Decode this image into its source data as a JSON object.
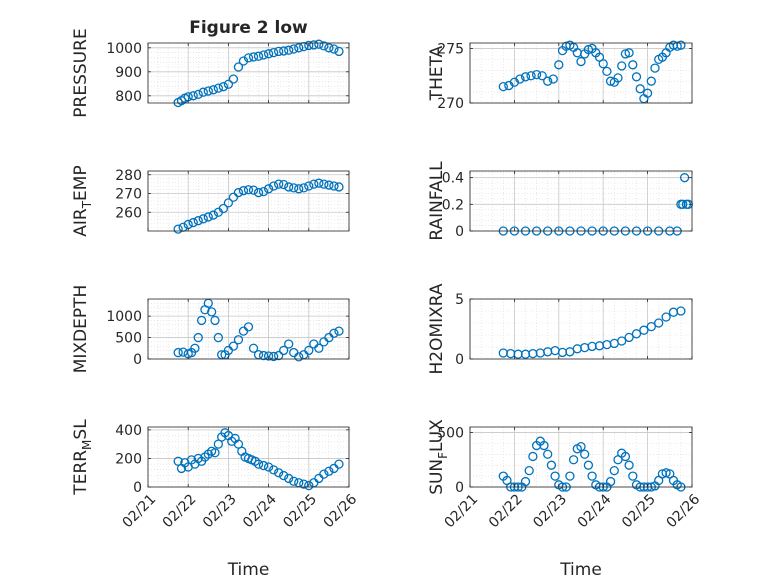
{
  "figure": {
    "background": "#ffffff",
    "marker_color": "#0072BD",
    "marker": "open-circle",
    "grid": "dotted-minor-and-major"
  },
  "chart_data": [
    {
      "type": "scatter",
      "title": "Figure 2 low",
      "ylabel": "PRESSURE",
      "xlabel": "",
      "xlim": [
        "02/21",
        "02/26"
      ],
      "ylim": [
        770,
        1020
      ],
      "yticks": [
        800,
        900,
        1000
      ],
      "xticks": [
        "02/21",
        "02/22",
        "02/23",
        "02/24",
        "02/25",
        "02/26"
      ],
      "show_xticklabels": false,
      "x": [
        "02/21 18:00",
        "02/21 20:00",
        "02/21 22:00",
        "02/22 00:00",
        "02/22 03:00",
        "02/22 06:00",
        "02/22 09:00",
        "02/22 12:00",
        "02/22 15:00",
        "02/22 18:00",
        "02/22 21:00",
        "02/23 00:00",
        "02/23 03:00",
        "02/23 06:00",
        "02/23 09:00",
        "02/23 12:00",
        "02/23 15:00",
        "02/23 18:00",
        "02/23 21:00",
        "02/24 00:00",
        "02/24 03:00",
        "02/24 06:00",
        "02/24 09:00",
        "02/24 12:00",
        "02/24 15:00",
        "02/24 18:00",
        "02/24 21:00",
        "02/25 00:00",
        "02/25 03:00",
        "02/25 06:00",
        "02/25 09:00",
        "02/25 12:00",
        "02/25 15:00",
        "02/25 18:00"
      ],
      "y": [
        772,
        780,
        790,
        796,
        800,
        806,
        815,
        820,
        825,
        832,
        838,
        848,
        870,
        920,
        945,
        958,
        962,
        965,
        970,
        975,
        980,
        985,
        987,
        990,
        995,
        1000,
        1005,
        1010,
        1012,
        1015,
        1008,
        1000,
        995,
        985
      ]
    },
    {
      "type": "scatter",
      "title": "",
      "ylabel": "THETA",
      "xlabel": "",
      "xlim": [
        "02/21",
        "02/26"
      ],
      "ylim": [
        270,
        275.5
      ],
      "yticks": [
        270,
        275
      ],
      "xticks": [
        "02/21",
        "02/22",
        "02/23",
        "02/24",
        "02/25",
        "02/26"
      ],
      "show_xticklabels": false,
      "x": [
        "02/21 18:00",
        "02/21 21:00",
        "02/22 00:00",
        "02/22 03:00",
        "02/22 06:00",
        "02/22 09:00",
        "02/22 12:00",
        "02/22 15:00",
        "02/22 18:00",
        "02/22 21:00",
        "02/23 00:00",
        "02/23 02:00",
        "02/23 04:00",
        "02/23 06:00",
        "02/23 08:00",
        "02/23 10:00",
        "02/23 12:00",
        "02/23 14:00",
        "02/23 16:00",
        "02/23 18:00",
        "02/23 20:00",
        "02/23 22:00",
        "02/24 00:00",
        "02/24 02:00",
        "02/24 04:00",
        "02/24 06:00",
        "02/24 08:00",
        "02/24 10:00",
        "02/24 12:00",
        "02/24 14:00",
        "02/24 16:00",
        "02/24 18:00",
        "02/24 20:00",
        "02/24 22:00",
        "02/25 00:00",
        "02/25 02:00",
        "02/25 04:00",
        "02/25 06:00",
        "02/25 08:00",
        "02/25 10:00",
        "02/25 12:00",
        "02/25 14:00",
        "02/25 16:00",
        "02/25 18:00"
      ],
      "y": [
        271.5,
        271.6,
        271.9,
        272.2,
        272.4,
        272.5,
        272.6,
        272.5,
        272.0,
        272.2,
        273.5,
        274.8,
        275.2,
        275.3,
        275.1,
        274.6,
        273.8,
        274.5,
        274.9,
        275.0,
        274.6,
        274.2,
        273.6,
        272.9,
        272.0,
        271.9,
        272.3,
        273.4,
        274.5,
        274.6,
        273.5,
        272.4,
        271.3,
        270.4,
        270.9,
        272.0,
        273.2,
        274.0,
        274.2,
        274.6,
        275.1,
        275.3,
        275.2,
        275.3
      ]
    },
    {
      "type": "scatter",
      "title": "",
      "ylabel": "AIR_TEMP",
      "ylabel_parts": [
        "AIR",
        "T",
        "EMP"
      ],
      "xlabel": "",
      "xlim": [
        "02/21",
        "02/26"
      ],
      "ylim": [
        250,
        282
      ],
      "yticks": [
        260,
        270,
        280
      ],
      "xticks": [
        "02/21",
        "02/22",
        "02/23",
        "02/24",
        "02/25",
        "02/26"
      ],
      "show_xticklabels": false,
      "x": [
        "02/21 18:00",
        "02/21 21:00",
        "02/22 00:00",
        "02/22 03:00",
        "02/22 06:00",
        "02/22 09:00",
        "02/22 12:00",
        "02/22 15:00",
        "02/22 18:00",
        "02/22 21:00",
        "02/23 00:00",
        "02/23 03:00",
        "02/23 06:00",
        "02/23 09:00",
        "02/23 12:00",
        "02/23 15:00",
        "02/23 18:00",
        "02/23 21:00",
        "02/24 00:00",
        "02/24 03:00",
        "02/24 06:00",
        "02/24 09:00",
        "02/24 12:00",
        "02/24 15:00",
        "02/24 18:00",
        "02/24 21:00",
        "02/25 00:00",
        "02/25 03:00",
        "02/25 06:00",
        "02/25 09:00",
        "02/25 12:00",
        "02/25 15:00",
        "02/25 18:00"
      ],
      "y": [
        251,
        252,
        253.5,
        254.5,
        255.5,
        256.5,
        257.5,
        258.5,
        260,
        262,
        265,
        268,
        270.5,
        271.5,
        272,
        271.8,
        270.5,
        271,
        272.5,
        274,
        275,
        274.8,
        273.5,
        273,
        272.5,
        273,
        274,
        275,
        275.5,
        275,
        274.5,
        274,
        273.5
      ]
    },
    {
      "type": "scatter",
      "title": "",
      "ylabel": "RAINFALL",
      "xlabel": "",
      "xlim": [
        "02/21",
        "02/26"
      ],
      "ylim": [
        0,
        0.45
      ],
      "yticks": [
        0,
        0.2,
        0.4
      ],
      "ytick_labels": [
        "0",
        "0.2",
        "0.4"
      ],
      "xticks": [
        "02/21",
        "02/22",
        "02/23",
        "02/24",
        "02/25",
        "02/26"
      ],
      "show_xticklabels": false,
      "x": [
        "02/21 18:00",
        "02/22 00:00",
        "02/22 06:00",
        "02/22 12:00",
        "02/22 18:00",
        "02/23 00:00",
        "02/23 06:00",
        "02/23 12:00",
        "02/23 18:00",
        "02/24 00:00",
        "02/24 06:00",
        "02/24 12:00",
        "02/24 18:00",
        "02/25 00:00",
        "02/25 06:00",
        "02/25 12:00",
        "02/25 16:00",
        "02/25 18:00",
        "02/25 19:00",
        "02/25 20:00",
        "02/25 21:00",
        "02/25 22:00"
      ],
      "y": [
        0,
        0,
        0,
        0,
        0,
        0,
        0,
        0,
        0,
        0,
        0,
        0,
        0,
        0,
        0,
        0,
        0,
        0.2,
        0.2,
        0.4,
        0.2,
        0.2
      ]
    },
    {
      "type": "scatter",
      "title": "",
      "ylabel": "MIXDEPTH",
      "xlabel": "",
      "xlim": [
        "02/21",
        "02/26"
      ],
      "ylim": [
        0,
        1400
      ],
      "yticks": [
        0,
        500,
        1000
      ],
      "xticks": [
        "02/21",
        "02/22",
        "02/23",
        "02/24",
        "02/25",
        "02/26"
      ],
      "show_xticklabels": false,
      "x": [
        "02/21 18:00",
        "02/21 21:00",
        "02/22 00:00",
        "02/22 02:00",
        "02/22 04:00",
        "02/22 06:00",
        "02/22 08:00",
        "02/22 10:00",
        "02/22 12:00",
        "02/22 14:00",
        "02/22 16:00",
        "02/22 18:00",
        "02/22 20:00",
        "02/22 22:00",
        "02/23 00:00",
        "02/23 03:00",
        "02/23 06:00",
        "02/23 09:00",
        "02/23 12:00",
        "02/23 15:00",
        "02/23 18:00",
        "02/23 21:00",
        "02/24 00:00",
        "02/24 03:00",
        "02/24 06:00",
        "02/24 09:00",
        "02/24 12:00",
        "02/24 15:00",
        "02/24 18:00",
        "02/24 21:00",
        "02/25 00:00",
        "02/25 03:00",
        "02/25 06:00",
        "02/25 09:00",
        "02/25 12:00",
        "02/25 15:00",
        "02/25 18:00"
      ],
      "y": [
        150,
        160,
        120,
        150,
        250,
        500,
        900,
        1150,
        1300,
        1100,
        900,
        500,
        100,
        100,
        200,
        300,
        450,
        650,
        750,
        250,
        100,
        80,
        70,
        60,
        80,
        200,
        350,
        150,
        50,
        100,
        200,
        350,
        250,
        400,
        500,
        600,
        650
      ]
    },
    {
      "type": "scatter",
      "title": "",
      "ylabel": "H2OMIXRA",
      "xlabel": "",
      "xlim": [
        "02/21",
        "02/26"
      ],
      "ylim": [
        0,
        5
      ],
      "yticks": [
        0,
        5
      ],
      "xticks": [
        "02/21",
        "02/22",
        "02/23",
        "02/24",
        "02/25",
        "02/26"
      ],
      "show_xticklabels": false,
      "x": [
        "02/21 18:00",
        "02/21 22:00",
        "02/22 02:00",
        "02/22 06:00",
        "02/22 10:00",
        "02/22 14:00",
        "02/22 18:00",
        "02/22 22:00",
        "02/23 02:00",
        "02/23 06:00",
        "02/23 10:00",
        "02/23 14:00",
        "02/23 18:00",
        "02/23 22:00",
        "02/24 02:00",
        "02/24 06:00",
        "02/24 10:00",
        "02/24 14:00",
        "02/24 18:00",
        "02/24 22:00",
        "02/25 02:00",
        "02/25 06:00",
        "02/25 10:00",
        "02/25 14:00",
        "02/25 18:00"
      ],
      "y": [
        0.5,
        0.45,
        0.4,
        0.4,
        0.45,
        0.5,
        0.6,
        0.7,
        0.55,
        0.6,
        0.85,
        0.95,
        1.05,
        1.1,
        1.2,
        1.3,
        1.5,
        1.8,
        2.1,
        2.4,
        2.7,
        3.0,
        3.5,
        3.9,
        4.0
      ]
    },
    {
      "type": "scatter",
      "title": "",
      "ylabel": "TERR_MSL",
      "ylabel_parts": [
        "TERR",
        "M",
        "SL"
      ],
      "xlabel": "Time",
      "xlim": [
        "02/21",
        "02/26"
      ],
      "ylim": [
        0,
        420
      ],
      "yticks": [
        0,
        200,
        400
      ],
      "xticks": [
        "02/21",
        "02/22",
        "02/23",
        "02/24",
        "02/25",
        "02/26"
      ],
      "show_xticklabels": true,
      "x": [
        "02/21 18:00",
        "02/21 20:00",
        "02/21 22:00",
        "02/22 00:00",
        "02/22 02:00",
        "02/22 04:00",
        "02/22 06:00",
        "02/22 08:00",
        "02/22 10:00",
        "02/22 12:00",
        "02/22 14:00",
        "02/22 16:00",
        "02/22 18:00",
        "02/22 20:00",
        "02/22 22:00",
        "02/23 00:00",
        "02/23 02:00",
        "02/23 04:00",
        "02/23 06:00",
        "02/23 08:00",
        "02/23 10:00",
        "02/23 12:00",
        "02/23 14:00",
        "02/23 16:00",
        "02/23 18:00",
        "02/23 21:00",
        "02/24 00:00",
        "02/24 03:00",
        "02/24 06:00",
        "02/24 09:00",
        "02/24 12:00",
        "02/24 15:00",
        "02/24 18:00",
        "02/24 21:00",
        "02/25 00:00",
        "02/25 03:00",
        "02/25 06:00",
        "02/25 09:00",
        "02/25 12:00",
        "02/25 15:00",
        "02/25 18:00"
      ],
      "y": [
        180,
        130,
        170,
        140,
        190,
        160,
        200,
        180,
        210,
        230,
        250,
        240,
        300,
        350,
        380,
        360,
        320,
        340,
        300,
        250,
        210,
        200,
        190,
        180,
        160,
        150,
        140,
        120,
        100,
        80,
        60,
        40,
        30,
        20,
        10,
        30,
        60,
        90,
        110,
        130,
        160
      ]
    },
    {
      "type": "scatter",
      "title": "",
      "ylabel": "SUN_FLUX",
      "ylabel_parts": [
        "SUN",
        "F",
        "LUX"
      ],
      "xlabel": "Time",
      "xlim": [
        "02/21",
        "02/26"
      ],
      "ylim": [
        0,
        550
      ],
      "yticks": [
        0,
        500
      ],
      "xticks": [
        "02/21",
        "02/22",
        "02/23",
        "02/24",
        "02/25",
        "02/26"
      ],
      "show_xticklabels": true,
      "x": [
        "02/21 18:00",
        "02/21 20:00",
        "02/21 22:00",
        "02/22 00:00",
        "02/22 02:00",
        "02/22 04:00",
        "02/22 06:00",
        "02/22 08:00",
        "02/22 10:00",
        "02/22 12:00",
        "02/22 14:00",
        "02/22 16:00",
        "02/22 18:00",
        "02/22 20:00",
        "02/22 22:00",
        "02/23 00:00",
        "02/23 02:00",
        "02/23 04:00",
        "02/23 06:00",
        "02/23 08:00",
        "02/23 10:00",
        "02/23 12:00",
        "02/23 14:00",
        "02/23 16:00",
        "02/23 18:00",
        "02/23 20:00",
        "02/23 22:00",
        "02/24 00:00",
        "02/24 02:00",
        "02/24 04:00",
        "02/24 06:00",
        "02/24 08:00",
        "02/24 10:00",
        "02/24 12:00",
        "02/24 14:00",
        "02/24 16:00",
        "02/24 18:00",
        "02/24 20:00",
        "02/24 22:00",
        "02/25 00:00",
        "02/25 02:00",
        "02/25 04:00",
        "02/25 06:00",
        "02/25 08:00",
        "02/25 10:00",
        "02/25 12:00",
        "02/25 14:00",
        "02/25 16:00",
        "02/25 18:00"
      ],
      "y": [
        100,
        60,
        0,
        0,
        0,
        0,
        50,
        150,
        280,
        380,
        420,
        380,
        300,
        200,
        100,
        20,
        0,
        0,
        100,
        250,
        350,
        370,
        300,
        200,
        100,
        20,
        0,
        0,
        0,
        50,
        150,
        250,
        310,
        280,
        200,
        100,
        20,
        0,
        0,
        0,
        0,
        10,
        60,
        120,
        130,
        120,
        60,
        20,
        0
      ]
    }
  ]
}
